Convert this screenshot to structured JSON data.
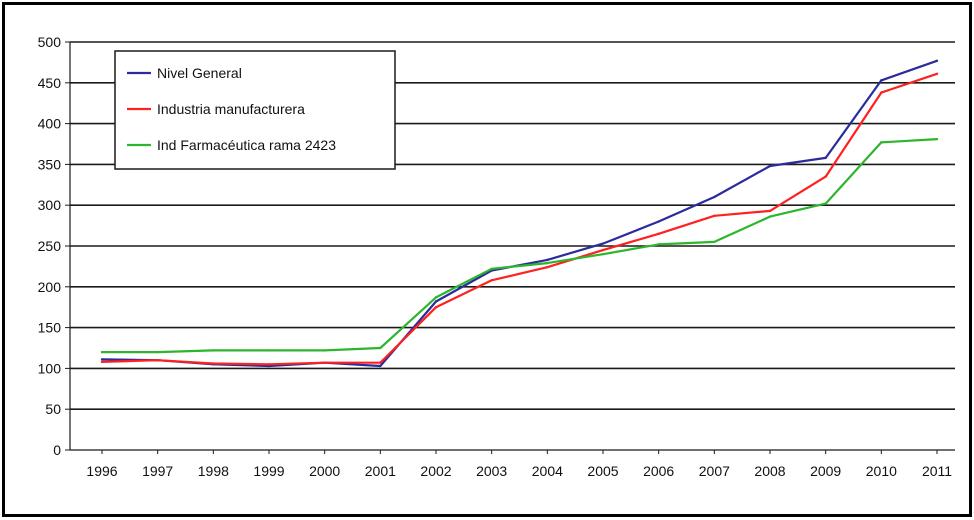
{
  "chart_data": {
    "type": "line",
    "title": "",
    "xlabel": "",
    "ylabel": "",
    "x": [
      "1996",
      "1997",
      "1998",
      "1999",
      "2000",
      "2001",
      "2002",
      "2003",
      "2004",
      "2005",
      "2006",
      "2007",
      "2008",
      "2009",
      "2010",
      "2011"
    ],
    "ylim": [
      0,
      500
    ],
    "yticks": [
      0,
      50,
      100,
      150,
      200,
      250,
      300,
      350,
      400,
      450,
      500
    ],
    "grid": true,
    "legend": "top-left",
    "series": [
      {
        "name": "Nivel General",
        "color": "#2b2b9c",
        "values": [
          111,
          110,
          105,
          103,
          107,
          103,
          182,
          220,
          233,
          253,
          280,
          310,
          348,
          358,
          453,
          477
        ]
      },
      {
        "name": "Industria manufacturera",
        "color": "#ff2020",
        "values": [
          108,
          110,
          106,
          105,
          107,
          107,
          175,
          208,
          224,
          245,
          265,
          287,
          293,
          335,
          438,
          461
        ]
      },
      {
        "name": "Ind Farmacéutica rama 2423",
        "color": "#2db52d",
        "values": [
          120,
          120,
          122,
          122,
          122,
          125,
          187,
          222,
          229,
          240,
          252,
          255,
          286,
          302,
          377,
          381
        ]
      }
    ]
  }
}
